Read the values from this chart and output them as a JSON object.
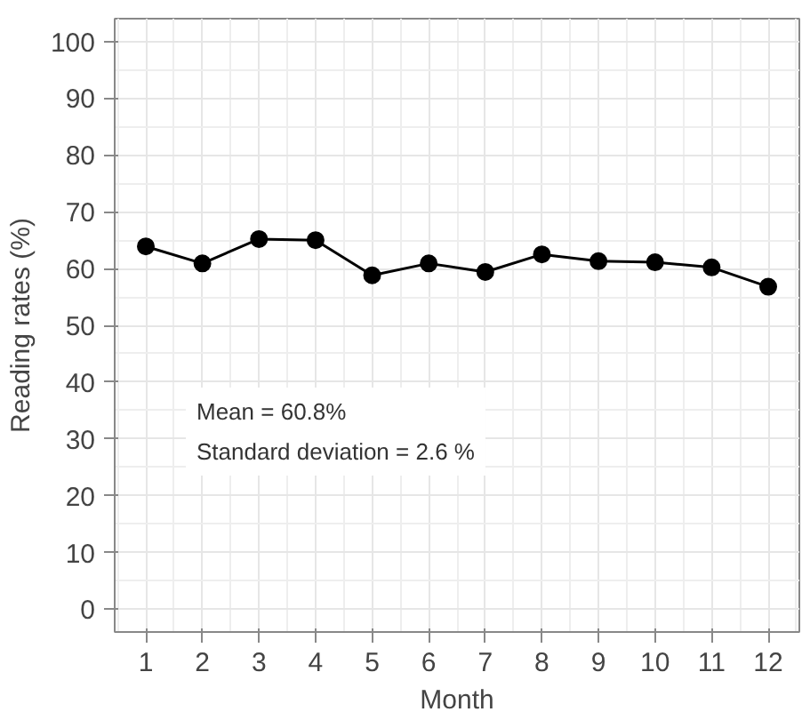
{
  "chart_data": {
    "type": "line",
    "xlabel": "Month",
    "ylabel": "Reading rates (%)",
    "x": [
      1,
      2,
      3,
      4,
      5,
      6,
      7,
      8,
      9,
      10,
      11,
      12
    ],
    "values": [
      63.9,
      60.9,
      65.2,
      65.0,
      58.8,
      60.9,
      59.4,
      62.5,
      61.3,
      61.1,
      60.2,
      56.8
    ],
    "color": "#000000",
    "marker": "circle",
    "line_style": "solid",
    "xlim": [
      0.45,
      12.55
    ],
    "xticks": [
      1,
      2,
      3,
      4,
      5,
      6,
      7,
      8,
      9,
      10,
      11,
      12
    ],
    "ylim": [
      -4,
      104
    ],
    "yticks": [
      0,
      10,
      20,
      30,
      40,
      50,
      60,
      70,
      80,
      90,
      100
    ],
    "grid": true,
    "annotations": [
      "Mean = 60.8%\nStandard deviation = 2.6 %"
    ]
  }
}
